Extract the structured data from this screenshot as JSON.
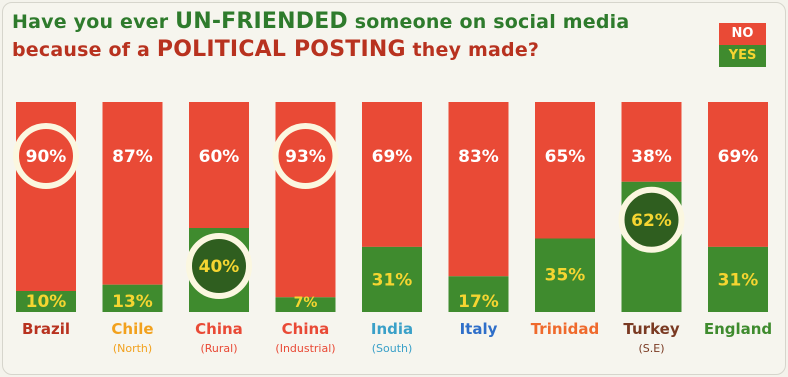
{
  "title": {
    "line1_pre": "Have you ever ",
    "line1_em": "UN-FRIENDED",
    "line1_post": " someone on social media",
    "line2_pre": "because of a ",
    "line2_em": "POLITICAL POSTING",
    "line2_post": " they made?"
  },
  "legend": {
    "no": "NO",
    "yes": "YES"
  },
  "colors": {
    "no": "#e94a36",
    "yes": "#3f8b2e",
    "yes_label": "#f5d531",
    "highlight_ring": "#fbf7e0",
    "highlight_fill_yes": "#2f5e1f"
  },
  "chart_data": {
    "type": "bar",
    "stacked": true,
    "ylim": [
      0,
      100
    ],
    "categories": [
      "Brazil",
      "Chile",
      "China",
      "China",
      "India",
      "Italy",
      "Trinidad",
      "Turkey",
      "England"
    ],
    "sublabels": [
      "",
      "(North)",
      "(Rural)",
      "(Industrial)",
      "(South)",
      "",
      "",
      "(S.E)",
      ""
    ],
    "label_colors": [
      "#b8321f",
      "#f2a11d",
      "#e94a36",
      "#e94a36",
      "#3aa0c8",
      "#2f6fc9",
      "#ef6a2c",
      "#7a3a22",
      "#3f8b2e"
    ],
    "series": [
      {
        "name": "NO",
        "values": [
          90,
          87,
          60,
          93,
          69,
          83,
          65,
          38,
          69
        ],
        "labels": [
          "90%",
          "87%",
          "60%",
          "93%",
          "69%",
          "83%",
          "65%",
          "38%",
          "69%"
        ]
      },
      {
        "name": "YES",
        "values": [
          10,
          13,
          40,
          7,
          31,
          17,
          35,
          62,
          31
        ],
        "labels": [
          "10%",
          "13%",
          "40%",
          "7%",
          "31%",
          "17%",
          "35%",
          "62%",
          "31%"
        ]
      }
    ],
    "highlights": [
      {
        "index": 0,
        "series": "NO"
      },
      {
        "index": 2,
        "series": "YES"
      },
      {
        "index": 3,
        "series": "NO"
      },
      {
        "index": 7,
        "series": "YES"
      }
    ]
  }
}
